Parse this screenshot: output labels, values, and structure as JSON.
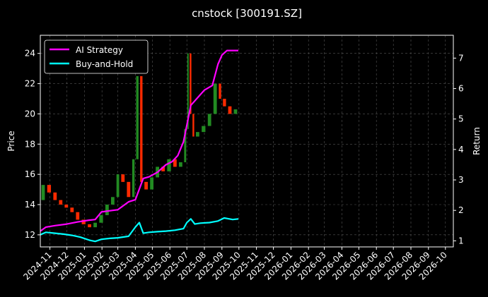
{
  "chart_data": {
    "type": "line",
    "title": "cnstock [300191.SZ]",
    "ylabel_left": "Price",
    "ylabel_right": "Return",
    "ylim_left": [
      11.2,
      25.2
    ],
    "ylim_right": [
      0.8,
      7.75
    ],
    "yticks_left": [
      12,
      14,
      16,
      18,
      20,
      22,
      24
    ],
    "yticks_right": [
      1,
      2,
      3,
      4,
      5,
      6,
      7
    ],
    "x_start": "2024-10-15",
    "x_end": "2026-10-15",
    "x_tick_labels": [
      "2024-11",
      "2024-12",
      "2025-01",
      "2025-02",
      "2025-03",
      "2025-04",
      "2025-05",
      "2025-06",
      "2025-07",
      "2025-08",
      "2025-09",
      "2025-10",
      "2025-11",
      "2025-12",
      "2026-01",
      "2026-02",
      "2026-03",
      "2026-04",
      "2026-05",
      "2026-06",
      "2026-07",
      "2026-08",
      "2026-09",
      "2026-10"
    ],
    "grid": true,
    "legend_position": "top-left",
    "colors": {
      "up_candle": "#228B22",
      "down_candle": "#ff2a00",
      "ai_strategy": "#ff00ff",
      "buy_and_hold": "#00ffff",
      "grid": "#555555",
      "background": "#000000",
      "text": "#ffffff"
    },
    "price_series": {
      "name": "Price",
      "x": [
        "2024-10-15",
        "2024-10-25",
        "2024-11-05",
        "2024-11-15",
        "2024-11-25",
        "2024-12-05",
        "2024-12-15",
        "2024-12-25",
        "2025-01-05",
        "2025-01-15",
        "2025-01-25",
        "2025-02-05",
        "2025-02-15",
        "2025-02-25",
        "2025-03-05",
        "2025-03-15",
        "2025-03-25",
        "2025-04-01",
        "2025-04-08",
        "2025-04-15",
        "2025-04-25",
        "2025-05-05",
        "2025-05-15",
        "2025-05-25",
        "2025-06-05",
        "2025-06-15",
        "2025-06-25",
        "2025-07-01",
        "2025-07-05",
        "2025-07-10",
        "2025-07-15",
        "2025-07-25",
        "2025-08-05",
        "2025-08-15",
        "2025-08-25",
        "2025-09-01",
        "2025-09-10",
        "2025-09-20",
        "2025-09-30"
      ],
      "values": [
        14.3,
        15.3,
        14.8,
        14.3,
        14.0,
        13.8,
        13.5,
        13.0,
        12.7,
        12.5,
        12.8,
        13.3,
        14.0,
        14.5,
        16.0,
        15.5,
        14.5,
        17.0,
        22.5,
        15.5,
        15.0,
        15.8,
        16.5,
        16.2,
        17.0,
        16.5,
        16.8,
        19.0,
        24.0,
        20.0,
        18.5,
        18.8,
        19.2,
        20.0,
        22.0,
        21.0,
        20.5,
        20.0,
        20.3
      ]
    },
    "series": [
      {
        "name": "AI Strategy",
        "x": [
          "2024-10-15",
          "2024-10-25",
          "2024-11-10",
          "2024-12-01",
          "2024-12-20",
          "2025-01-10",
          "2025-01-20",
          "2025-01-31",
          "2025-02-20",
          "2025-03-01",
          "2025-03-20",
          "2025-04-01",
          "2025-04-08",
          "2025-04-15",
          "2025-04-25",
          "2025-05-10",
          "2025-05-25",
          "2025-06-05",
          "2025-06-15",
          "2025-06-25",
          "2025-07-01",
          "2025-07-08",
          "2025-07-20",
          "2025-08-01",
          "2025-08-15",
          "2025-08-25",
          "2025-09-01",
          "2025-09-10",
          "2025-09-20",
          "2025-09-30"
        ],
        "values": [
          1.32,
          1.45,
          1.5,
          1.55,
          1.62,
          1.68,
          1.7,
          1.95,
          2.0,
          2.02,
          2.28,
          2.35,
          2.7,
          3.05,
          3.1,
          3.25,
          3.5,
          3.6,
          3.8,
          4.25,
          4.8,
          5.45,
          5.7,
          5.95,
          6.1,
          6.8,
          7.1,
          7.25,
          7.25,
          7.25
        ]
      },
      {
        "name": "Buy-and-Hold",
        "x": [
          "2024-10-15",
          "2024-10-25",
          "2024-11-10",
          "2024-11-25",
          "2024-12-10",
          "2024-12-25",
          "2025-01-10",
          "2025-01-20",
          "2025-01-31",
          "2025-02-15",
          "2025-03-01",
          "2025-03-20",
          "2025-04-01",
          "2025-04-08",
          "2025-04-15",
          "2025-04-25",
          "2025-05-10",
          "2025-05-25",
          "2025-06-10",
          "2025-06-25",
          "2025-07-01",
          "2025-07-08",
          "2025-07-15",
          "2025-07-25",
          "2025-08-10",
          "2025-08-25",
          "2025-09-05",
          "2025-09-20",
          "2025-09-30"
        ],
        "values": [
          1.2,
          1.28,
          1.25,
          1.22,
          1.18,
          1.12,
          1.02,
          0.98,
          1.05,
          1.08,
          1.1,
          1.15,
          1.45,
          1.6,
          1.25,
          1.28,
          1.3,
          1.32,
          1.35,
          1.4,
          1.6,
          1.72,
          1.55,
          1.58,
          1.6,
          1.65,
          1.75,
          1.7,
          1.72
        ]
      }
    ]
  }
}
